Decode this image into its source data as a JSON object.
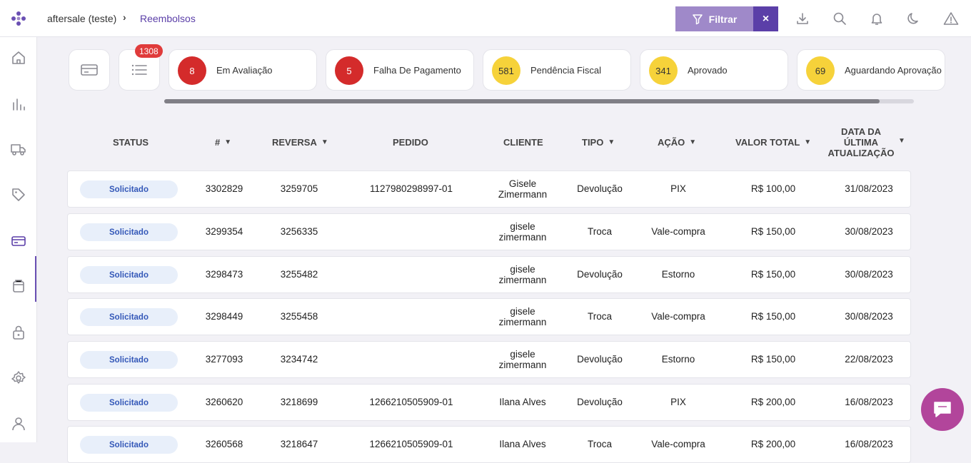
{
  "breadcrumb": {
    "app": "aftersale (teste)",
    "separator": "›",
    "current": "Reembolsos"
  },
  "filter": {
    "label": "Filtrar",
    "clear": "×"
  },
  "top_icons": [
    "download-icon",
    "search-icon",
    "bell-icon",
    "moon-icon",
    "alert-icon"
  ],
  "sidebar": {
    "items": [
      "home-icon",
      "chart-icon",
      "truck-icon",
      "tag-icon",
      "credit-card-icon",
      "box-icon",
      "lock-icon",
      "settings-icon",
      "user-icon"
    ],
    "active": "credit-card-icon"
  },
  "list_count": "1308",
  "status_cards": [
    {
      "count": "8",
      "label": "Em Avaliação",
      "color": "#d42b2b",
      "text_color": "#ffffff"
    },
    {
      "count": "5",
      "label": "Falha De Pagamento",
      "color": "#d42b2b",
      "text_color": "#ffffff"
    },
    {
      "count": "581",
      "label": "Pendência Fiscal",
      "color": "#f6d23a",
      "text_color": "#333333"
    },
    {
      "count": "341",
      "label": "Aprovado",
      "color": "#f6d23a",
      "text_color": "#333333"
    },
    {
      "count": "69",
      "label": "Aguardando Aprovação",
      "color": "#f6d23a",
      "text_color": "#333333"
    }
  ],
  "columns": {
    "status": "STATUS",
    "id": "#",
    "reversa": "REVERSA",
    "pedido": "PEDIDO",
    "cliente": "CLIENTE",
    "tipo": "TIPO",
    "acao": "AÇÃO",
    "valor": "VALOR TOTAL",
    "data_1": "DATA DA",
    "data_2": "ÚLTIMA",
    "data_3": "ATUALIZAÇÃO"
  },
  "rows": [
    {
      "status": "Solicitado",
      "id": "3302829",
      "reversa": "3259705",
      "pedido": "1127980298997-01",
      "cliente_1": "Gisele",
      "cliente_2": "Zimermann",
      "tipo": "Devolução",
      "acao": "PIX",
      "valor": "R$ 100,00",
      "data": "31/08/2023"
    },
    {
      "status": "Solicitado",
      "id": "3299354",
      "reversa": "3256335",
      "pedido": "",
      "cliente_1": "gisele",
      "cliente_2": "zimermann",
      "tipo": "Troca",
      "acao": "Vale-compra",
      "valor": "R$ 150,00",
      "data": "30/08/2023"
    },
    {
      "status": "Solicitado",
      "id": "3298473",
      "reversa": "3255482",
      "pedido": "",
      "cliente_1": "gisele",
      "cliente_2": "zimermann",
      "tipo": "Devolução",
      "acao": "Estorno",
      "valor": "R$ 150,00",
      "data": "30/08/2023"
    },
    {
      "status": "Solicitado",
      "id": "3298449",
      "reversa": "3255458",
      "pedido": "",
      "cliente_1": "gisele",
      "cliente_2": "zimermann",
      "tipo": "Troca",
      "acao": "Vale-compra",
      "valor": "R$ 150,00",
      "data": "30/08/2023"
    },
    {
      "status": "Solicitado",
      "id": "3277093",
      "reversa": "3234742",
      "pedido": "",
      "cliente_1": "gisele",
      "cliente_2": "zimermann",
      "tipo": "Devolução",
      "acao": "Estorno",
      "valor": "R$ 150,00",
      "data": "22/08/2023"
    },
    {
      "status": "Solicitado",
      "id": "3260620",
      "reversa": "3218699",
      "pedido": "1266210505909-01",
      "cliente_1": "Ilana Alves",
      "cliente_2": "",
      "tipo": "Devolução",
      "acao": "PIX",
      "valor": "R$ 200,00",
      "data": "16/08/2023"
    },
    {
      "status": "Solicitado",
      "id": "3260568",
      "reversa": "3218647",
      "pedido": "1266210505909-01",
      "cliente_1": "Ilana Alves",
      "cliente_2": "",
      "tipo": "Troca",
      "acao": "Vale-compra",
      "valor": "R$ 200,00",
      "data": "16/08/2023"
    }
  ],
  "colors": {
    "brand": "#5b3fa8",
    "filter": "#9f89c9",
    "pill_bg": "#e8effa",
    "pill_text": "#3458b8",
    "chat": "#b2459b"
  }
}
